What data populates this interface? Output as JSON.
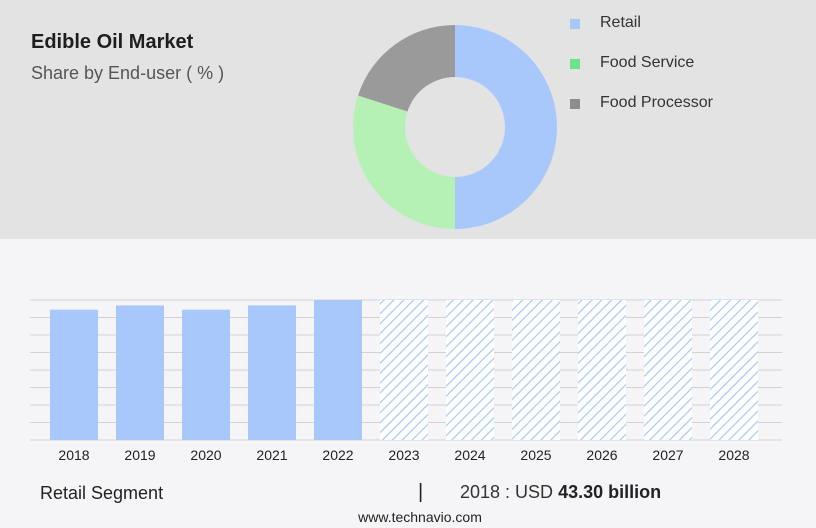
{
  "header": {
    "title": "Edible Oil Market",
    "subtitle": "Share by End-user ( % )"
  },
  "chart_data": [
    {
      "type": "pie",
      "variant": "donut",
      "title": "Edible Oil Market",
      "subtitle": "Share by End-user ( % )",
      "categories": [
        "Retail",
        "Food Service",
        "Food Processor"
      ],
      "values": [
        50,
        30,
        20
      ],
      "colors": [
        "#a8c8fc",
        "#b5f0b5",
        "#9a9a9a"
      ],
      "legend_colors": [
        "#a8c8fc",
        "#6ee38a",
        "#8c8c8c"
      ],
      "legend": "right"
    },
    {
      "type": "bar",
      "series_name": "Retail Segment",
      "categories": [
        "2018",
        "2019",
        "2020",
        "2021",
        "2022",
        "2023",
        "2024",
        "2025",
        "2026",
        "2027",
        "2028"
      ],
      "values": [
        43.3,
        44.7,
        43.3,
        44.7,
        46.5,
        46.5,
        46.5,
        46.5,
        46.5,
        46.5,
        46.5
      ],
      "forecast_from": "2023",
      "forecast_style": "hatched",
      "ylim": [
        0,
        46.5
      ],
      "y_ticks_shown": false,
      "grid": true,
      "bar_color": "#a8c8fc"
    }
  ],
  "footer": {
    "segment": "Retail Segment",
    "divider": "|",
    "value_prefix": "2018 : USD",
    "value_amount": "43.30 billion",
    "source": "www.technavio.com"
  }
}
